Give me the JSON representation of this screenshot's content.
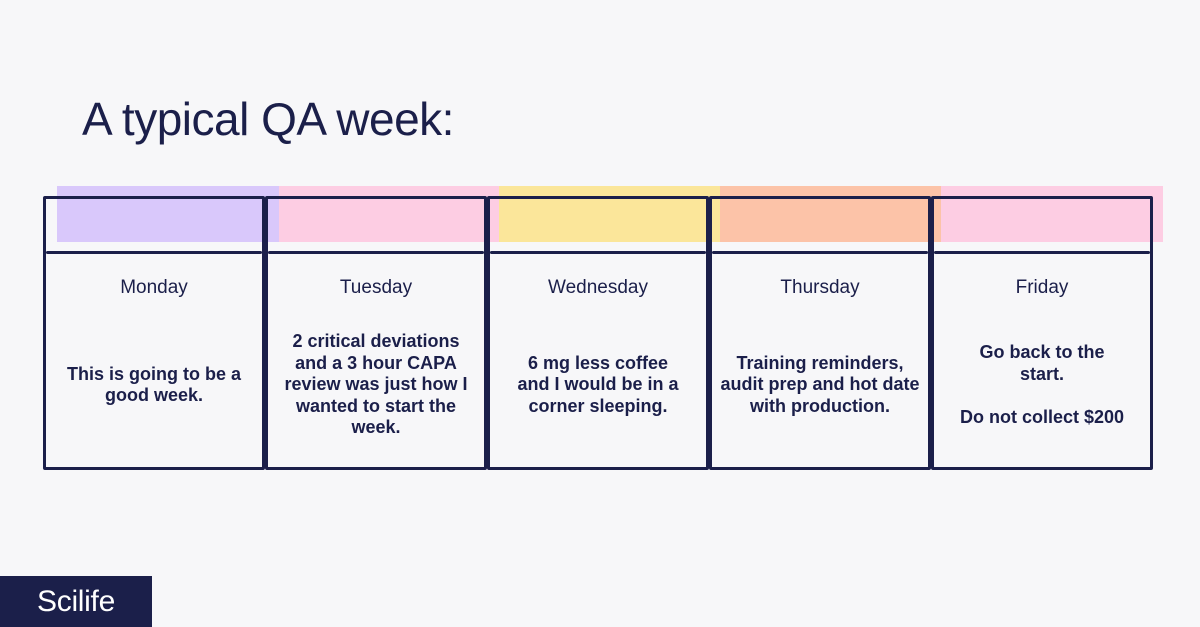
{
  "title": "A typical QA week:",
  "days": [
    {
      "name": "Monday",
      "color": "#d9c8fb",
      "text": [
        "This is going to be a good week."
      ]
    },
    {
      "name": "Tuesday",
      "color": "#fdcde3",
      "text": [
        "2 critical deviations and a 3 hour CAPA review was just how I wanted to start the week."
      ]
    },
    {
      "name": "Wednesday",
      "color": "#fbe69a",
      "text": [
        "6 mg less coffee and I would be in a corner sleeping."
      ]
    },
    {
      "name": "Thursday",
      "color": "#fcc3a8",
      "text": [
        "Training reminders, audit prep and hot date with production."
      ]
    },
    {
      "name": "Friday",
      "color": "#fdcde3",
      "text": [
        "Go back to the start.",
        "Do not collect $200"
      ]
    }
  ],
  "brand": {
    "name": "Scilife",
    "color": "#1b1f4a"
  }
}
